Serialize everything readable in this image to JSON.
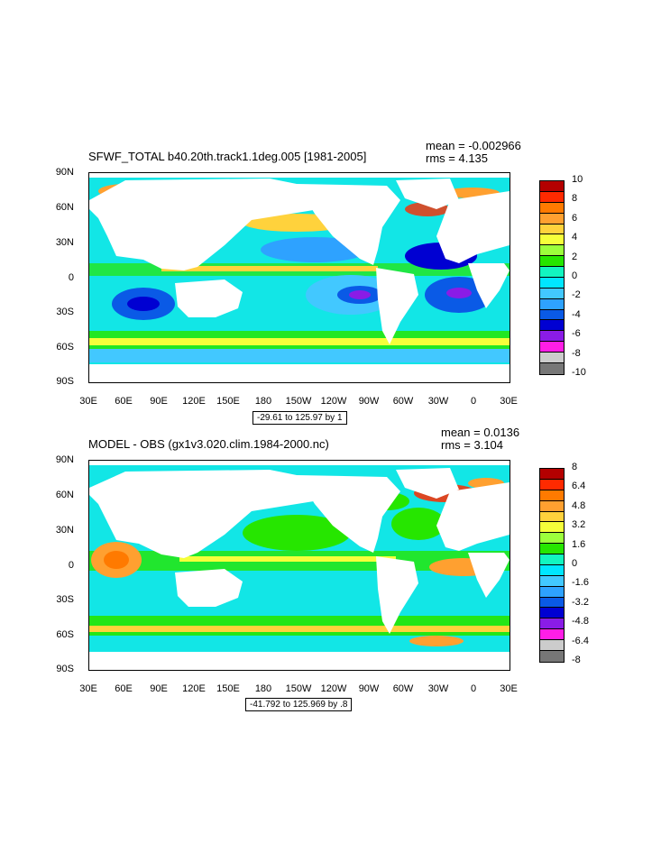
{
  "panels": [
    {
      "title": "SFWF_TOTAL b40.20th.track1.1deg.005 [1981-2005]",
      "mean": "mean = -0.002966",
      "rms": "rms = 4.135",
      "range_note": "-29.61 to 125.97 by 1",
      "ylabels": [
        "90N",
        "60N",
        "30N",
        "0",
        "30S",
        "60S",
        "90S"
      ],
      "xlabels": [
        "30E",
        "60E",
        "90E",
        "120E",
        "150E",
        "180",
        "150W",
        "120W",
        "90W",
        "60W",
        "30W",
        "0",
        "30E"
      ],
      "colorbar_labels": [
        "10",
        "8",
        "6",
        "4",
        "2",
        "0",
        "-2",
        "-4",
        "-6",
        "-8",
        "-10"
      ],
      "colorbar_colors": [
        "#b40000",
        "#ff2a00",
        "#ff7a00",
        "#ffa030",
        "#ffd23c",
        "#f5ff3a",
        "#9cff3c",
        "#26e600",
        "#12f5c0",
        "#00e6ff",
        "#42c8ff",
        "#2ea2ff",
        "#0a5ae6",
        "#0000d2",
        "#8a1ce6",
        "#ff1ee6",
        "#cccccc",
        "#777777"
      ]
    },
    {
      "title": "MODEL - OBS (gx1v3.020.clim.1984-2000.nc)",
      "mean": "mean = 0.0136",
      "rms": "rms = 3.104",
      "range_note": "-41.792 to 125.969 by .8",
      "ylabels": [
        "90N",
        "60N",
        "30N",
        "0",
        "30S",
        "60S",
        "90S"
      ],
      "xlabels": [
        "30E",
        "60E",
        "90E",
        "120E",
        "150E",
        "180",
        "150W",
        "120W",
        "90W",
        "60W",
        "30W",
        "0",
        "30E"
      ],
      "colorbar_labels": [
        "8",
        "6.4",
        "4.8",
        "3.2",
        "1.6",
        "0",
        "-1.6",
        "-3.2",
        "-4.8",
        "-6.4",
        "-8"
      ],
      "colorbar_colors": [
        "#b40000",
        "#ff2a00",
        "#ff7a00",
        "#ffa030",
        "#ffd23c",
        "#f5ff3a",
        "#9cff3c",
        "#26e600",
        "#12f5c0",
        "#00e6ff",
        "#42c8ff",
        "#2ea2ff",
        "#0a5ae6",
        "#0000d2",
        "#8a1ce6",
        "#ff1ee6",
        "#cccccc",
        "#777777"
      ]
    }
  ],
  "colors": {
    "ocean_base": "#12e6e6",
    "land": "#ffffff"
  }
}
